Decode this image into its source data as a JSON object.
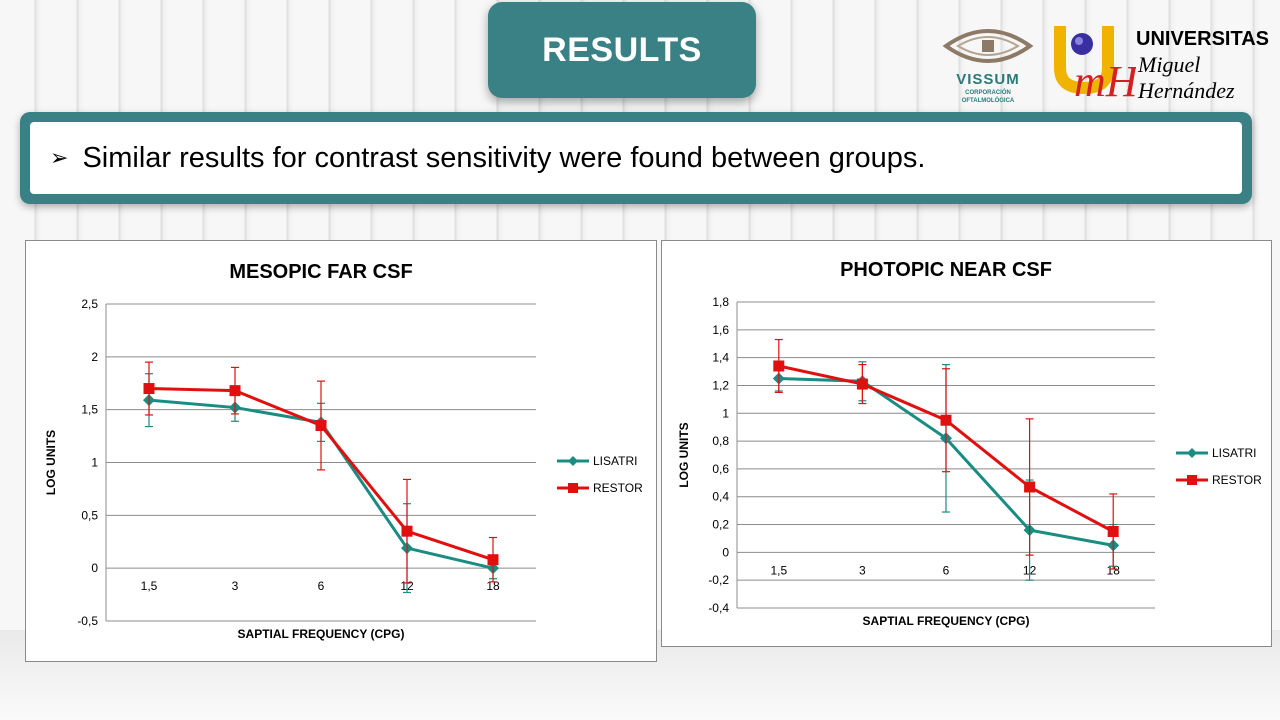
{
  "header": {
    "title": "RESULTS"
  },
  "bullet": {
    "arrow": "➢",
    "text": "Similar results for contrast sensitivity were found between groups."
  },
  "logos": {
    "vissum": {
      "name": "VISSUM",
      "subtitle_line1": "CORPORACIÓN",
      "subtitle_line2": "OFTALMOLÓGICA"
    },
    "umh": {
      "line1": "UNIVERSITAS",
      "line2": "Miguel",
      "line3": "Hernández",
      "monogram": "mH"
    }
  },
  "colors": {
    "accent": "#3a8185",
    "lisatri": "#1a8c82",
    "restor": "#e01010"
  },
  "chart_data": [
    {
      "type": "line",
      "title": "MESOPIC FAR CSF",
      "xlabel": "SAPTIAL FREQUENCY (CPG)",
      "ylabel": "LOG UNITS",
      "categories": [
        "1,5",
        "3",
        "6",
        "12",
        "18"
      ],
      "ylim": [
        -0.5,
        2.5
      ],
      "yticks": [
        -0.5,
        0,
        0.5,
        1,
        1.5,
        2,
        2.5
      ],
      "ytick_labels": [
        "-0,5",
        "0",
        "0,5",
        "1",
        "1,5",
        "2",
        "2,5"
      ],
      "grid": true,
      "legend": "right",
      "series": [
        {
          "name": "LISATRI",
          "color": "#1a8c82",
          "marker": "diamond",
          "values": [
            1.59,
            1.52,
            1.38,
            0.19,
            0.0
          ],
          "errors": [
            0.25,
            0.13,
            0.18,
            0.42,
            0.1
          ]
        },
        {
          "name": "RESTOR",
          "color": "#e01010",
          "marker": "square",
          "values": [
            1.7,
            1.68,
            1.35,
            0.35,
            0.08
          ],
          "errors": [
            0.25,
            0.22,
            0.42,
            0.49,
            0.21
          ]
        }
      ]
    },
    {
      "type": "line",
      "title": "PHOTOPIC NEAR CSF",
      "xlabel": "SAPTIAL FREQUENCY (CPG)",
      "ylabel": "LOG UNITS",
      "categories": [
        "1,5",
        "3",
        "6",
        "12",
        "18"
      ],
      "ylim": [
        -0.4,
        1.8
      ],
      "yticks": [
        -0.4,
        -0.2,
        0,
        0.2,
        0.4,
        0.6,
        0.8,
        1,
        1.2,
        1.4,
        1.6,
        1.8
      ],
      "ytick_labels": [
        "-0,4",
        "-0,2",
        "0",
        "0,2",
        "0,4",
        "0,6",
        "0,8",
        "1",
        "1,2",
        "1,4",
        "1,6",
        "1,8"
      ],
      "grid": true,
      "legend": "right",
      "series": [
        {
          "name": "LISATRI",
          "color": "#1a8c82",
          "marker": "diamond",
          "values": [
            1.25,
            1.23,
            0.82,
            0.16,
            0.05
          ],
          "errors": [
            0.09,
            0.14,
            0.53,
            0.36,
            0.15
          ]
        },
        {
          "name": "RESTOR",
          "color": "#e01010",
          "marker": "square",
          "values": [
            1.34,
            1.21,
            0.95,
            0.47,
            0.15
          ],
          "errors": [
            0.19,
            0.14,
            0.37,
            0.49,
            0.27
          ]
        }
      ]
    }
  ]
}
